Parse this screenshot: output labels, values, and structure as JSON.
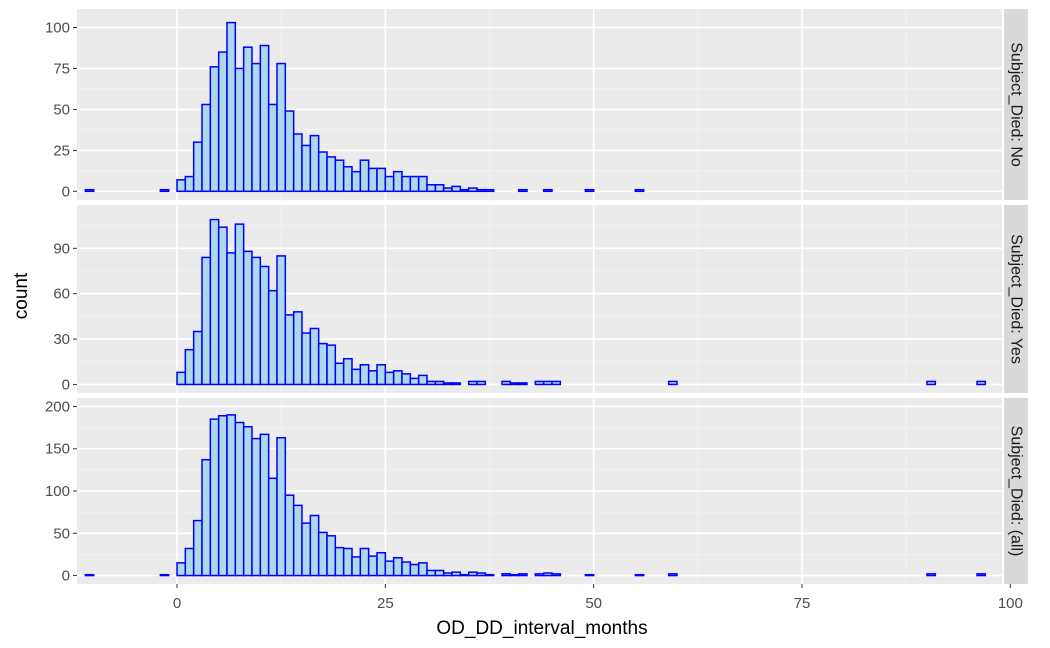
{
  "chart_data": {
    "type": "bar",
    "subtype": "faceted-histogram",
    "xlabel": "OD_DD_interval_months",
    "ylabel": "count",
    "xlim": [
      -12,
      99
    ],
    "x_ticks": [
      0,
      25,
      50,
      75,
      100
    ],
    "bin_width": 1,
    "fill_color": "#add8e6",
    "line_color": "#0000ff",
    "panel_background": "#ebebeb",
    "strip_background": "#d9d9d9",
    "grid": true,
    "legend": "none",
    "facets": [
      {
        "strip_label": "Subject_Died: No",
        "ylim": [
          0,
          106
        ],
        "y_ticks": [
          0,
          25,
          50,
          75,
          100
        ],
        "bins": [
          [
            -11,
            1
          ],
          [
            -10,
            0
          ],
          [
            -9,
            0
          ],
          [
            -8,
            0
          ],
          [
            -7,
            0
          ],
          [
            -6,
            0
          ],
          [
            -5,
            0
          ],
          [
            -4,
            0
          ],
          [
            -3,
            0
          ],
          [
            -2,
            1
          ],
          [
            -1,
            0
          ],
          [
            0,
            7
          ],
          [
            1,
            9
          ],
          [
            2,
            30
          ],
          [
            3,
            53
          ],
          [
            4,
            76
          ],
          [
            5,
            85
          ],
          [
            6,
            103
          ],
          [
            7,
            75
          ],
          [
            8,
            88
          ],
          [
            9,
            78
          ],
          [
            10,
            89
          ],
          [
            11,
            53
          ],
          [
            12,
            78
          ],
          [
            13,
            49
          ],
          [
            14,
            35
          ],
          [
            15,
            28
          ],
          [
            16,
            34
          ],
          [
            17,
            24
          ],
          [
            18,
            21
          ],
          [
            19,
            19
          ],
          [
            20,
            15
          ],
          [
            21,
            12
          ],
          [
            22,
            19
          ],
          [
            23,
            14
          ],
          [
            24,
            14
          ],
          [
            25,
            9
          ],
          [
            26,
            12
          ],
          [
            27,
            9
          ],
          [
            28,
            9
          ],
          [
            29,
            9
          ],
          [
            30,
            4
          ],
          [
            31,
            4
          ],
          [
            32,
            2
          ],
          [
            33,
            3
          ],
          [
            34,
            1
          ],
          [
            35,
            2
          ],
          [
            36,
            1
          ],
          [
            37,
            1
          ],
          [
            38,
            0
          ],
          [
            39,
            0
          ],
          [
            40,
            0
          ],
          [
            41,
            1
          ],
          [
            42,
            0
          ],
          [
            43,
            0
          ],
          [
            44,
            1
          ],
          [
            45,
            0
          ],
          [
            46,
            0
          ],
          [
            47,
            0
          ],
          [
            48,
            0
          ],
          [
            49,
            1
          ],
          [
            50,
            0
          ],
          [
            51,
            0
          ],
          [
            52,
            0
          ],
          [
            53,
            0
          ],
          [
            54,
            0
          ],
          [
            55,
            1
          ],
          [
            56,
            0
          ],
          [
            57,
            0
          ],
          [
            58,
            0
          ],
          [
            59,
            0
          ],
          [
            60,
            0
          ],
          [
            61,
            0
          ],
          [
            62,
            0
          ],
          [
            63,
            0
          ],
          [
            64,
            0
          ],
          [
            65,
            0
          ],
          [
            66,
            0
          ],
          [
            67,
            0
          ],
          [
            68,
            0
          ],
          [
            69,
            0
          ],
          [
            70,
            0
          ],
          [
            71,
            0
          ],
          [
            72,
            0
          ],
          [
            73,
            0
          ],
          [
            74,
            0
          ],
          [
            75,
            0
          ],
          [
            76,
            0
          ],
          [
            77,
            0
          ],
          [
            78,
            0
          ],
          [
            79,
            0
          ],
          [
            80,
            0
          ],
          [
            81,
            0
          ],
          [
            82,
            0
          ],
          [
            83,
            0
          ],
          [
            84,
            0
          ],
          [
            85,
            0
          ],
          [
            86,
            0
          ],
          [
            87,
            0
          ],
          [
            88,
            0
          ],
          [
            89,
            0
          ],
          [
            90,
            0
          ],
          [
            91,
            0
          ],
          [
            92,
            0
          ],
          [
            93,
            0
          ],
          [
            94,
            0
          ],
          [
            95,
            0
          ],
          [
            96,
            0
          ]
        ]
      },
      {
        "strip_label": "Subject_Died: Yes",
        "ylim": [
          0,
          113
        ],
        "y_ticks": [
          0,
          30,
          60,
          90
        ],
        "bins": [
          [
            -11,
            0
          ],
          [
            -10,
            0
          ],
          [
            -9,
            0
          ],
          [
            -8,
            0
          ],
          [
            -7,
            0
          ],
          [
            -6,
            0
          ],
          [
            -5,
            0
          ],
          [
            -4,
            0
          ],
          [
            -3,
            0
          ],
          [
            -2,
            0
          ],
          [
            -1,
            0
          ],
          [
            0,
            8
          ],
          [
            1,
            23
          ],
          [
            2,
            35
          ],
          [
            3,
            84
          ],
          [
            4,
            109
          ],
          [
            5,
            104
          ],
          [
            6,
            87
          ],
          [
            7,
            106
          ],
          [
            8,
            88
          ],
          [
            9,
            84
          ],
          [
            10,
            78
          ],
          [
            11,
            62
          ],
          [
            12,
            85
          ],
          [
            13,
            46
          ],
          [
            14,
            48
          ],
          [
            15,
            34
          ],
          [
            16,
            37
          ],
          [
            17,
            27
          ],
          [
            18,
            26
          ],
          [
            19,
            14
          ],
          [
            20,
            17
          ],
          [
            21,
            10
          ],
          [
            22,
            13
          ],
          [
            23,
            9
          ],
          [
            24,
            13
          ],
          [
            25,
            8
          ],
          [
            26,
            9
          ],
          [
            27,
            7
          ],
          [
            28,
            4
          ],
          [
            29,
            6
          ],
          [
            30,
            2
          ],
          [
            31,
            2
          ],
          [
            32,
            1
          ],
          [
            33,
            1
          ],
          [
            34,
            0
          ],
          [
            35,
            2
          ],
          [
            36,
            2
          ],
          [
            37,
            0
          ],
          [
            38,
            0
          ],
          [
            39,
            2
          ],
          [
            40,
            1
          ],
          [
            41,
            1
          ],
          [
            42,
            0
          ],
          [
            43,
            2
          ],
          [
            44,
            2
          ],
          [
            45,
            2
          ],
          [
            46,
            0
          ],
          [
            47,
            0
          ],
          [
            48,
            0
          ],
          [
            49,
            0
          ],
          [
            50,
            0
          ],
          [
            51,
            0
          ],
          [
            52,
            0
          ],
          [
            53,
            0
          ],
          [
            54,
            0
          ],
          [
            55,
            0
          ],
          [
            56,
            0
          ],
          [
            57,
            0
          ],
          [
            58,
            0
          ],
          [
            59,
            2
          ],
          [
            60,
            0
          ],
          [
            61,
            0
          ],
          [
            62,
            0
          ],
          [
            63,
            0
          ],
          [
            64,
            0
          ],
          [
            65,
            0
          ],
          [
            66,
            0
          ],
          [
            67,
            0
          ],
          [
            68,
            0
          ],
          [
            69,
            0
          ],
          [
            70,
            0
          ],
          [
            71,
            0
          ],
          [
            72,
            0
          ],
          [
            73,
            0
          ],
          [
            74,
            0
          ],
          [
            75,
            0
          ],
          [
            76,
            0
          ],
          [
            77,
            0
          ],
          [
            78,
            0
          ],
          [
            79,
            0
          ],
          [
            80,
            0
          ],
          [
            81,
            0
          ],
          [
            82,
            0
          ],
          [
            83,
            0
          ],
          [
            84,
            0
          ],
          [
            85,
            0
          ],
          [
            86,
            0
          ],
          [
            87,
            0
          ],
          [
            88,
            0
          ],
          [
            89,
            0
          ],
          [
            90,
            2
          ],
          [
            91,
            0
          ],
          [
            92,
            0
          ],
          [
            93,
            0
          ],
          [
            94,
            0
          ],
          [
            95,
            0
          ],
          [
            96,
            2
          ]
        ]
      },
      {
        "strip_label": "Subject_Died: (all)",
        "ylim": [
          0,
          200
        ],
        "y_ticks": [
          0,
          50,
          100,
          150,
          200
        ],
        "bins": [
          [
            -11,
            1
          ],
          [
            -10,
            0
          ],
          [
            -9,
            0
          ],
          [
            -8,
            0
          ],
          [
            -7,
            0
          ],
          [
            -6,
            0
          ],
          [
            -5,
            0
          ],
          [
            -4,
            0
          ],
          [
            -3,
            0
          ],
          [
            -2,
            1
          ],
          [
            -1,
            0
          ],
          [
            0,
            15
          ],
          [
            1,
            32
          ],
          [
            2,
            65
          ],
          [
            3,
            137
          ],
          [
            4,
            185
          ],
          [
            5,
            189
          ],
          [
            6,
            190
          ],
          [
            7,
            181
          ],
          [
            8,
            176
          ],
          [
            9,
            162
          ],
          [
            10,
            167
          ],
          [
            11,
            115
          ],
          [
            12,
            163
          ],
          [
            13,
            95
          ],
          [
            14,
            83
          ],
          [
            15,
            62
          ],
          [
            16,
            71
          ],
          [
            17,
            51
          ],
          [
            18,
            47
          ],
          [
            19,
            33
          ],
          [
            20,
            32
          ],
          [
            21,
            22
          ],
          [
            22,
            32
          ],
          [
            23,
            23
          ],
          [
            24,
            27
          ],
          [
            25,
            17
          ],
          [
            26,
            21
          ],
          [
            27,
            16
          ],
          [
            28,
            13
          ],
          [
            29,
            15
          ],
          [
            30,
            6
          ],
          [
            31,
            6
          ],
          [
            32,
            3
          ],
          [
            33,
            4
          ],
          [
            34,
            1
          ],
          [
            35,
            4
          ],
          [
            36,
            3
          ],
          [
            37,
            1
          ],
          [
            38,
            0
          ],
          [
            39,
            2
          ],
          [
            40,
            1
          ],
          [
            41,
            2
          ],
          [
            42,
            0
          ],
          [
            43,
            2
          ],
          [
            44,
            3
          ],
          [
            45,
            2
          ],
          [
            46,
            0
          ],
          [
            47,
            0
          ],
          [
            48,
            0
          ],
          [
            49,
            1
          ],
          [
            50,
            0
          ],
          [
            51,
            0
          ],
          [
            52,
            0
          ],
          [
            53,
            0
          ],
          [
            54,
            0
          ],
          [
            55,
            1
          ],
          [
            56,
            0
          ],
          [
            57,
            0
          ],
          [
            58,
            0
          ],
          [
            59,
            2
          ],
          [
            60,
            0
          ],
          [
            61,
            0
          ],
          [
            62,
            0
          ],
          [
            63,
            0
          ],
          [
            64,
            0
          ],
          [
            65,
            0
          ],
          [
            66,
            0
          ],
          [
            67,
            0
          ],
          [
            68,
            0
          ],
          [
            69,
            0
          ],
          [
            70,
            0
          ],
          [
            71,
            0
          ],
          [
            72,
            0
          ],
          [
            73,
            0
          ],
          [
            74,
            0
          ],
          [
            75,
            0
          ],
          [
            76,
            0
          ],
          [
            77,
            0
          ],
          [
            78,
            0
          ],
          [
            79,
            0
          ],
          [
            80,
            0
          ],
          [
            81,
            0
          ],
          [
            82,
            0
          ],
          [
            83,
            0
          ],
          [
            84,
            0
          ],
          [
            85,
            0
          ],
          [
            86,
            0
          ],
          [
            87,
            0
          ],
          [
            88,
            0
          ],
          [
            89,
            0
          ],
          [
            90,
            2
          ],
          [
            91,
            0
          ],
          [
            92,
            0
          ],
          [
            93,
            0
          ],
          [
            94,
            0
          ],
          [
            95,
            0
          ],
          [
            96,
            2
          ]
        ]
      }
    ]
  }
}
